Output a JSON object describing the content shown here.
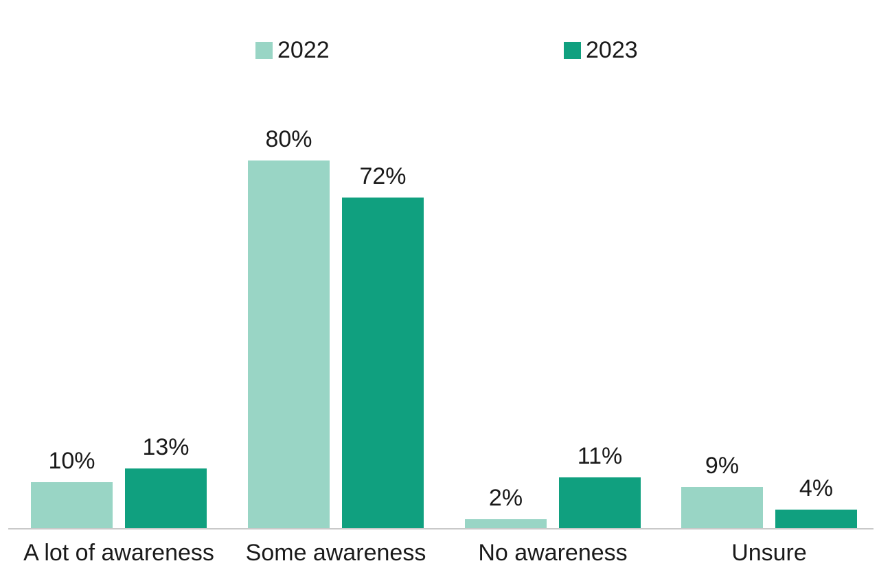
{
  "chart_data": {
    "type": "bar",
    "title": "",
    "xlabel": "",
    "ylabel": "",
    "categories": [
      "A lot of awareness",
      "Some awareness",
      "No awareness",
      "Unsure"
    ],
    "series": [
      {
        "name": "2022",
        "color": "#99D5C5",
        "values": [
          10,
          80,
          2,
          9
        ]
      },
      {
        "name": "2023",
        "color": "#10A07F",
        "values": [
          13,
          72,
          11,
          4
        ]
      }
    ],
    "value_suffix": "%",
    "data_labels": true,
    "ylim": [
      0,
      100
    ],
    "grid": false,
    "y_axis_visible": false,
    "legend_position": "top"
  },
  "colors": {
    "background": "#FFFFFF",
    "axis_line": "#C9C9C9",
    "text": "#1A1A1A",
    "series_2022": "#99D5C5",
    "series_2023": "#10A07F"
  }
}
